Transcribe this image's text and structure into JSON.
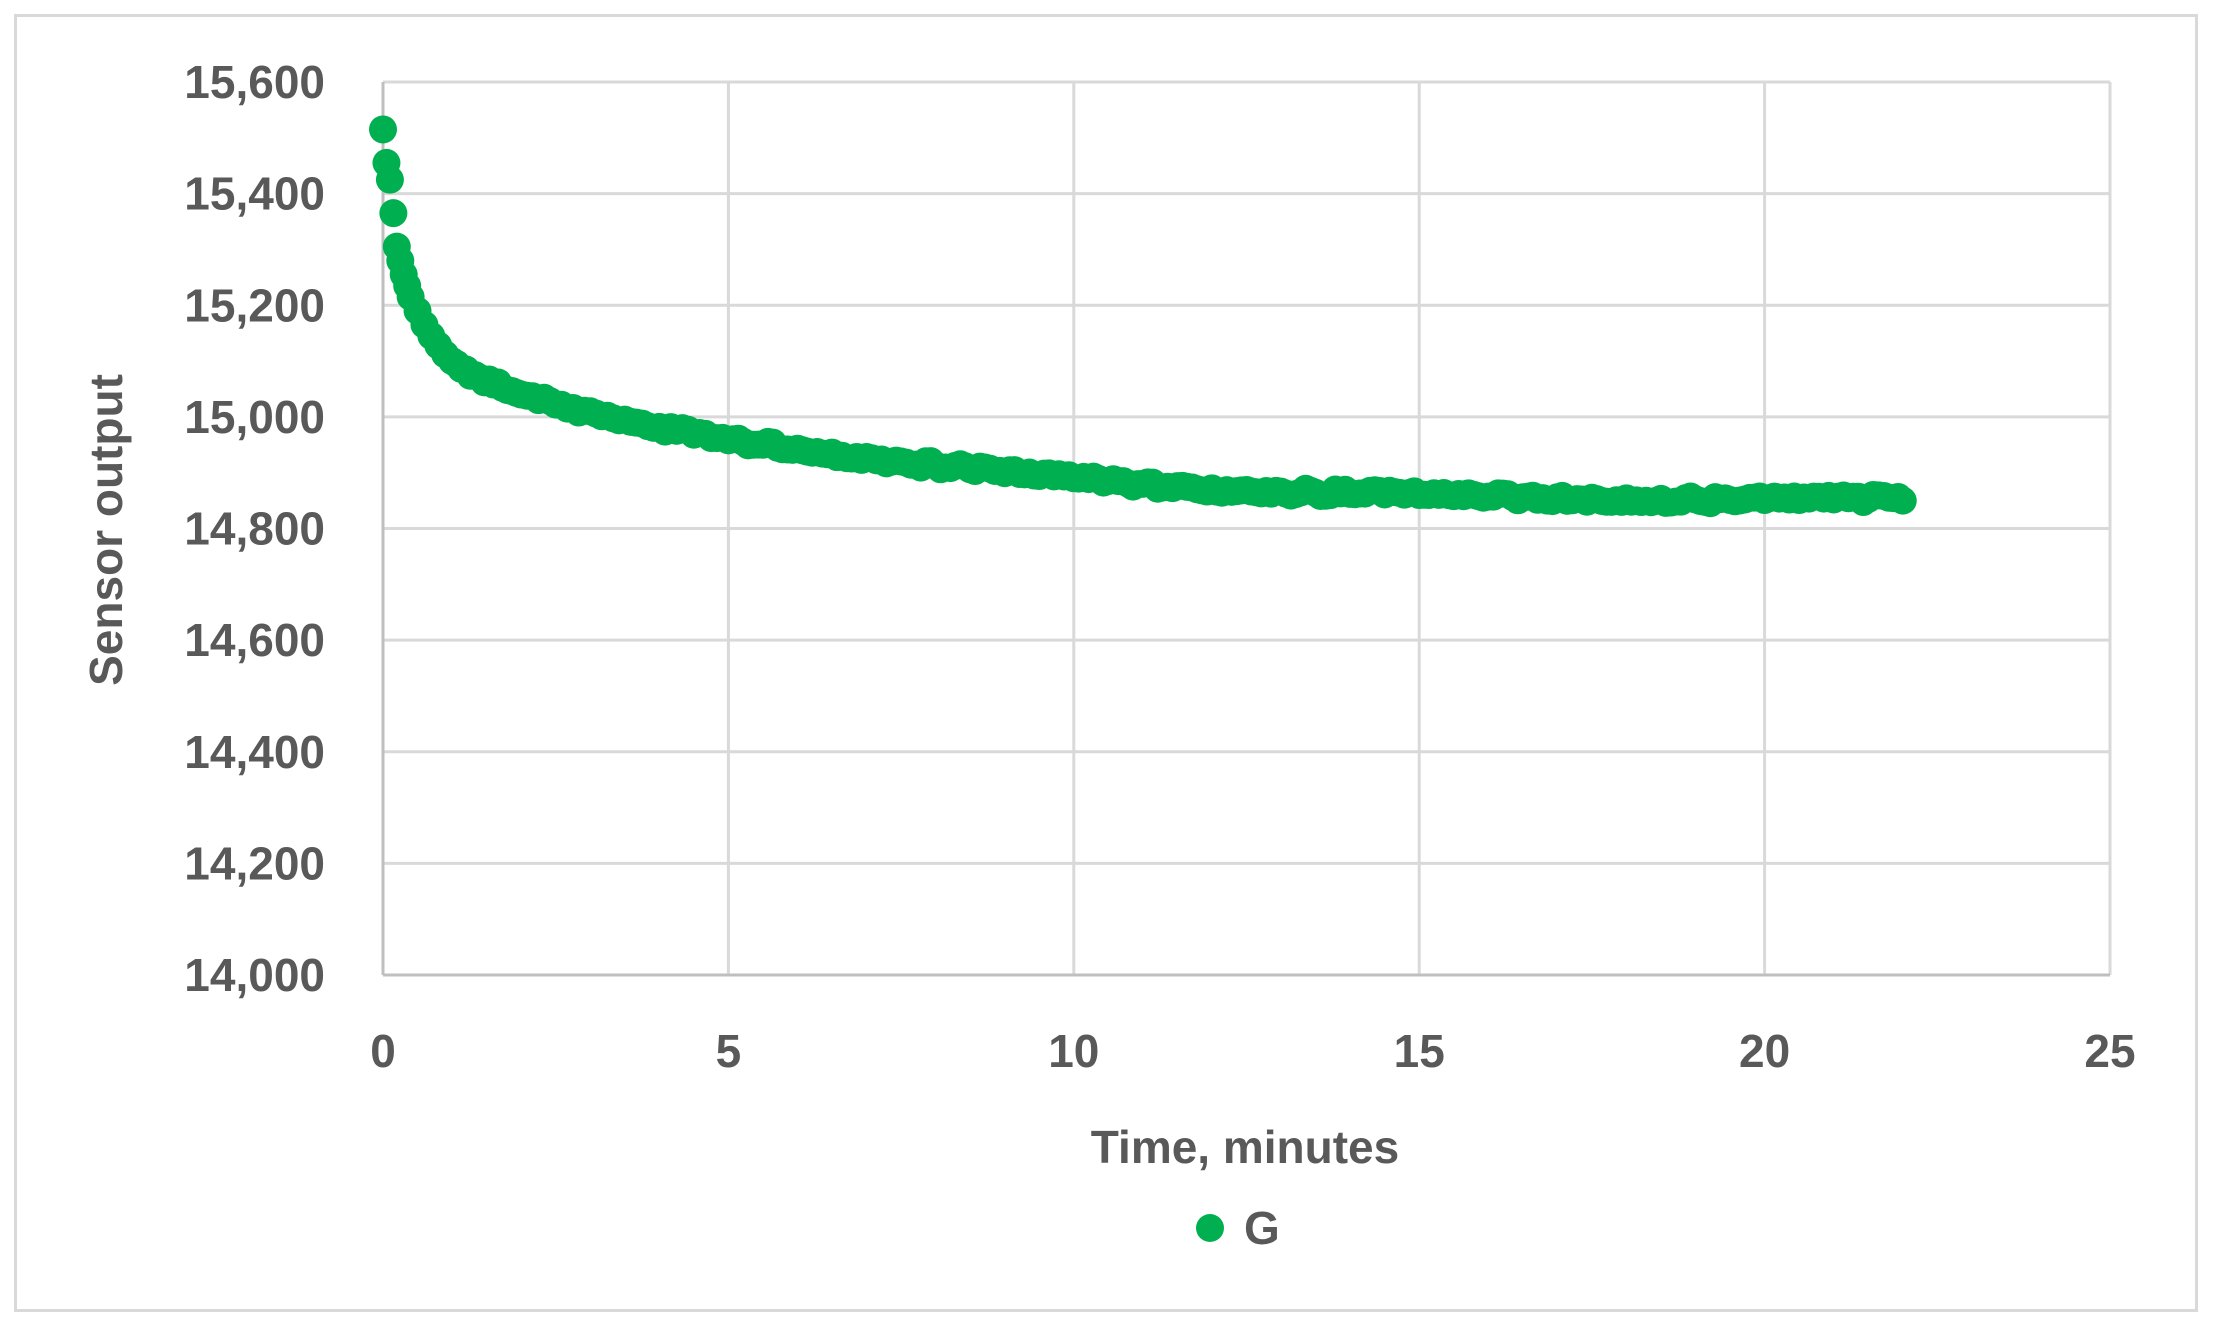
{
  "chart_data": {
    "type": "scatter",
    "title": "",
    "xlabel": "Time, minutes",
    "ylabel": "Sensor output",
    "xlim": [
      0,
      25
    ],
    "ylim": [
      14000,
      15600
    ],
    "xticks": [
      0,
      5,
      10,
      15,
      20,
      25
    ],
    "yticks": [
      14000,
      14200,
      14400,
      14600,
      14800,
      15000,
      15200,
      15400,
      15600
    ],
    "xtick_labels": [
      "0",
      "5",
      "10",
      "15",
      "20",
      "25"
    ],
    "ytick_labels": [
      "14,000",
      "14,200",
      "14,400",
      "14,600",
      "14,800",
      "15,000",
      "15,200",
      "15,400",
      "15,600"
    ],
    "grid": true,
    "legend_position": "bottom",
    "colors": {
      "series": "#00b050",
      "grid": "#d9d9d9",
      "text": "#595959"
    },
    "series": [
      {
        "name": "G",
        "x": [
          0.0,
          0.05,
          0.1,
          0.15,
          0.2,
          0.25,
          0.3,
          0.35,
          0.4,
          0.5,
          0.6,
          0.7,
          0.8,
          0.9,
          1.0,
          1.2,
          1.4,
          1.6,
          1.8,
          2.0,
          2.25,
          2.5,
          2.75,
          3.0,
          3.25,
          3.5,
          3.75,
          4.0,
          4.25,
          4.5,
          4.75,
          5.0,
          5.5,
          6.0,
          6.5,
          7.0,
          7.5,
          8.0,
          8.5,
          9.0,
          9.5,
          10.0,
          10.5,
          11.0,
          11.5,
          12.0,
          12.5,
          13.0,
          13.5,
          14.0,
          14.5,
          15.0,
          15.5,
          16.0,
          16.5,
          17.0,
          17.5,
          18.0,
          18.5,
          19.0,
          19.5,
          20.0,
          20.5,
          21.0,
          21.5,
          21.8,
          22.0
        ],
        "y": [
          15515,
          15455,
          15425,
          15365,
          15305,
          15280,
          15255,
          15235,
          15215,
          15190,
          15165,
          15145,
          15128,
          15112,
          15100,
          15085,
          15070,
          15058,
          15048,
          15040,
          15030,
          15022,
          15016,
          15010,
          15002,
          14995,
          14988,
          14982,
          14975,
          14968,
          14962,
          14958,
          14950,
          14943,
          14936,
          14928,
          14920,
          14913,
          14906,
          14899,
          14894,
          14890,
          14885,
          14880,
          14876,
          14872,
          14869,
          14866,
          14864,
          14862,
          14861,
          14860,
          14858,
          14857,
          14856,
          14856,
          14855,
          14854,
          14853,
          14852,
          14851,
          14851,
          14851,
          14852,
          14853,
          14855,
          14850
        ]
      }
    ]
  }
}
